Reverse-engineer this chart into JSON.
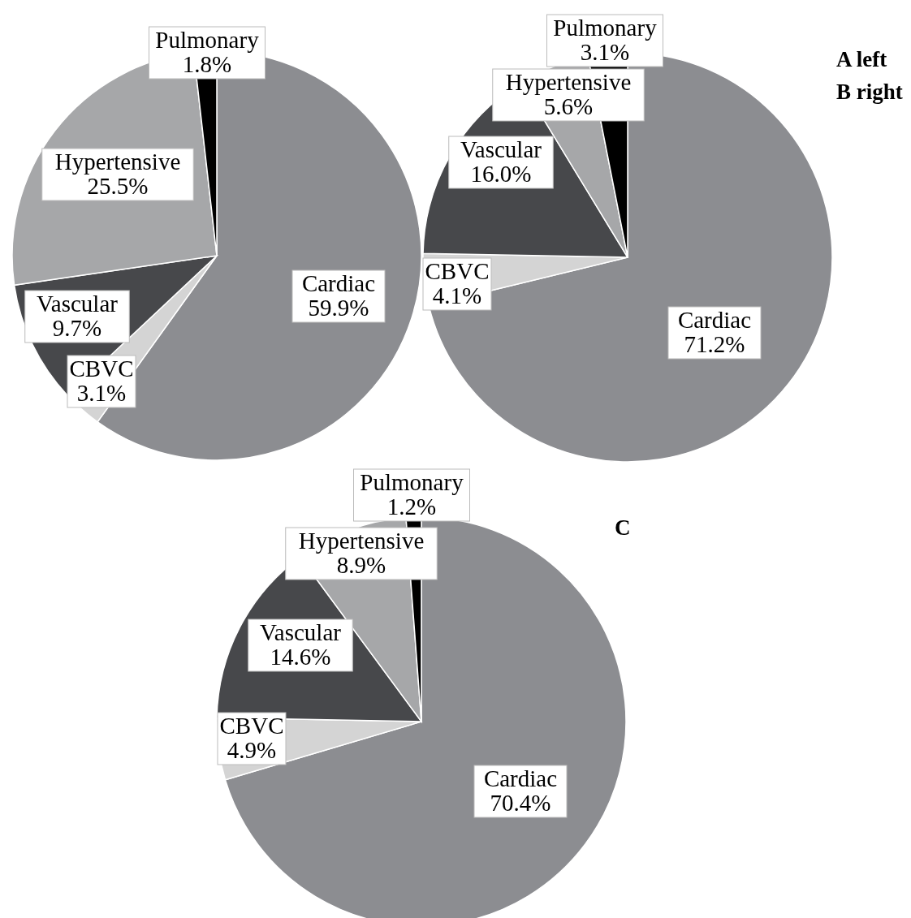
{
  "chart_data": [
    {
      "type": "pie",
      "categories": [
        "Cardiac",
        "CBVC",
        "Vascular",
        "Hypertensive",
        "Pulmonary"
      ],
      "values": [
        59.9,
        3.1,
        9.7,
        25.5,
        1.8
      ],
      "value_labels": [
        "59.9%",
        "3.1%",
        "9.7%",
        "25.5%",
        "1.8%"
      ],
      "colors": [
        "#8c8d91",
        "#d4d4d4",
        "#47484b",
        "#a6a7a9",
        "#000000"
      ],
      "legend": false
    },
    {
      "type": "pie",
      "categories": [
        "Cardiac",
        "CBVC",
        "Vascular",
        "Hypertensive",
        "Pulmonary"
      ],
      "values": [
        71.2,
        4.1,
        16.0,
        5.6,
        3.1
      ],
      "value_labels": [
        "71.2%",
        "4.1%",
        "16.0%",
        "5.6%",
        "3.1%"
      ],
      "colors": [
        "#8c8d91",
        "#d4d4d4",
        "#47484b",
        "#a6a7a9",
        "#000000"
      ],
      "legend": false,
      "annotations": [
        "A left",
        "B right"
      ]
    },
    {
      "type": "pie",
      "title": "C",
      "categories": [
        "Cardiac",
        "CBVC",
        "Vascular",
        "Hypertensive",
        "Pulmonary"
      ],
      "values": [
        70.4,
        4.9,
        14.6,
        8.9,
        1.2
      ],
      "value_labels": [
        "70.4%",
        "4.9%",
        "14.6%",
        "8.9%",
        "1.2%"
      ],
      "colors": [
        "#8c8d91",
        "#d4d4d4",
        "#47484b",
        "#a6a7a9",
        "#000000"
      ],
      "legend": false
    }
  ]
}
